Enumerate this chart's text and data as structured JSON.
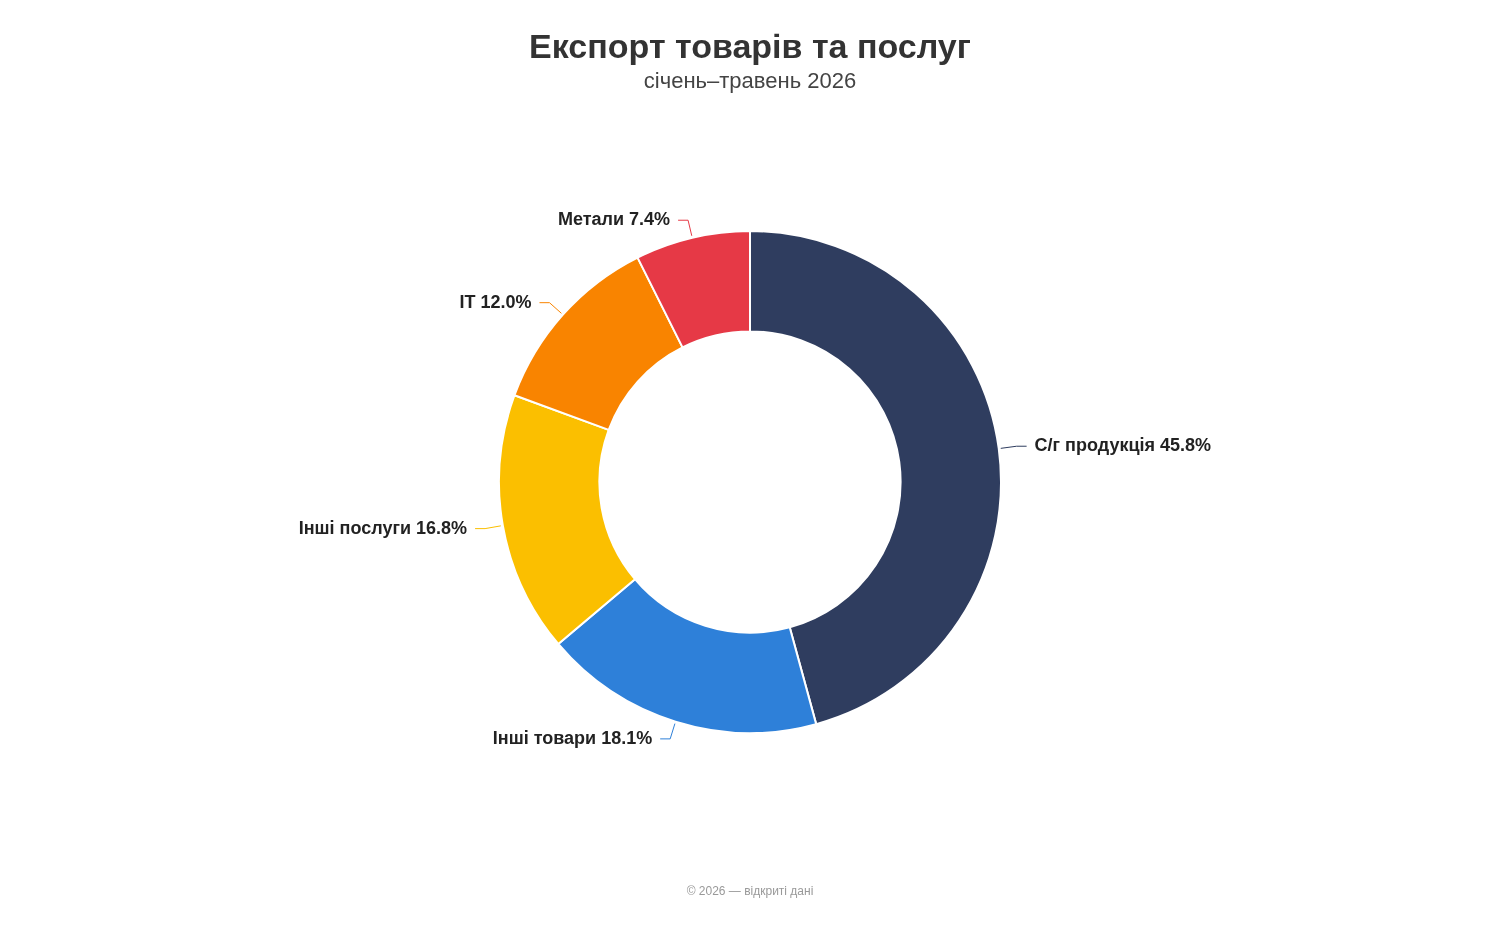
{
  "chart_data": {
    "type": "donut",
    "title": "Експорт товарів та послуг",
    "subtitle": "січень–травень 2026",
    "categories": [
      "С/г продукція",
      "Інші товари",
      "Інші послуги",
      "IT",
      "Метали"
    ],
    "values": [
      45.8,
      18.1,
      16.8,
      12.0,
      7.4
    ],
    "value_labels": [
      "45.8%",
      "18.1%",
      "16.8%",
      "12.0%",
      "7.4%"
    ],
    "colors": [
      "#2f3d5f",
      "#2e80d9",
      "#fbbf00",
      "#f98400",
      "#e63946"
    ],
    "legend": false,
    "annotations": [
      "© 2026 — відкриті дані"
    ]
  }
}
